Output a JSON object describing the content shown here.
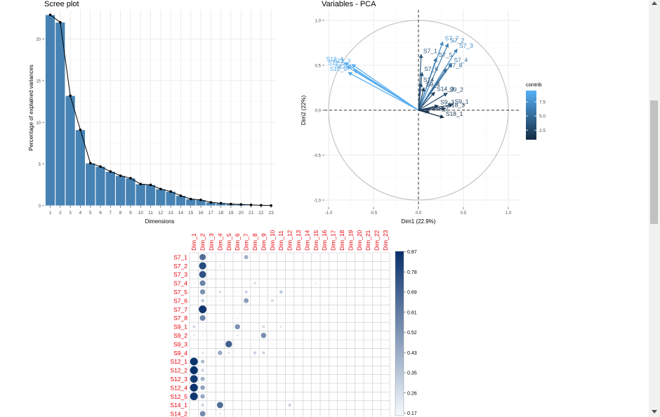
{
  "chart_data": [
    {
      "type": "bar",
      "title": "Scree plot",
      "xlabel": "Dimensions",
      "ylabel": "Percentage of explained variances",
      "categories": [
        "1",
        "2",
        "3",
        "4",
        "5",
        "6",
        "7",
        "8",
        "9",
        "10",
        "11",
        "12",
        "13",
        "14",
        "15",
        "16",
        "17",
        "18",
        "19",
        "20",
        "21",
        "22",
        "23"
      ],
      "values": [
        22.9,
        22.0,
        13.2,
        9.1,
        5.1,
        4.7,
        4.1,
        3.6,
        3.3,
        2.6,
        2.5,
        2.0,
        1.7,
        1.2,
        0.8,
        0.7,
        0.4,
        0.3,
        0.2,
        0.15,
        0.1,
        0.05,
        0.02
      ],
      "ylim": [
        0,
        23.5
      ],
      "yticks": [
        "0",
        "5",
        "10",
        "15",
        "20"
      ],
      "bar_color": "#4682b4",
      "line_color": "#000000"
    },
    {
      "type": "scatter",
      "title": "Variables - PCA",
      "xlabel": "Dim1 (22.9%)",
      "ylabel": "Dim2 (22%)",
      "xlim": [
        -1.0,
        1.0
      ],
      "ylim": [
        -1.0,
        1.0
      ],
      "xticks": [
        "-1.0",
        "-0.5",
        "0.0",
        "0.5",
        "1.0"
      ],
      "yticks": [
        "-1.0",
        "-0.5",
        "0.0",
        "0.5",
        "1.0"
      ],
      "legend_title": "contrib",
      "legend_ticks": [
        "7.5",
        "5.0",
        "2.5"
      ],
      "legend_colors": [
        "#56b1f7",
        "#132b43"
      ],
      "variables": [
        {
          "name": "S7_1",
          "x": 0.03,
          "y": 0.62,
          "contrib": 3.5
        },
        {
          "name": "S7_2",
          "x": 0.33,
          "y": 0.74,
          "contrib": 6.3
        },
        {
          "name": "S7_3",
          "x": 0.43,
          "y": 0.68,
          "contrib": 6.6
        },
        {
          "name": "S7_4",
          "x": 0.37,
          "y": 0.52,
          "contrib": 5.4
        },
        {
          "name": "S7_5",
          "x": 0.2,
          "y": 0.58,
          "contrib": 4.6
        },
        {
          "name": "S7_6",
          "x": 0.04,
          "y": 0.42,
          "contrib": 3.3
        },
        {
          "name": "S7_7",
          "x": 0.27,
          "y": 0.76,
          "contrib": 7.1
        },
        {
          "name": "S7_8",
          "x": 0.31,
          "y": 0.46,
          "contrib": 4.9
        },
        {
          "name": "S9_1",
          "x": 0.38,
          "y": 0.06,
          "contrib": 2.5
        },
        {
          "name": "S9_2",
          "x": 0.32,
          "y": 0.19,
          "contrib": 3.0
        },
        {
          "name": "S9_3",
          "x": 0.22,
          "y": 0.05,
          "contrib": 2.0
        },
        {
          "name": "S9_4",
          "x": 0.06,
          "y": 0.25,
          "contrib": 2.0
        },
        {
          "name": "S12_1",
          "x": -0.72,
          "y": 0.45,
          "contrib": 9.0
        },
        {
          "name": "S12_2",
          "x": -0.78,
          "y": 0.42,
          "contrib": 9.0
        },
        {
          "name": "S12_3",
          "x": -0.74,
          "y": 0.51,
          "contrib": 9.2
        },
        {
          "name": "S12_4",
          "x": -0.82,
          "y": 0.53,
          "contrib": 9.2
        },
        {
          "name": "S12_5",
          "x": -0.8,
          "y": 0.49,
          "contrib": 9.1
        },
        {
          "name": "S14",
          "x": 0.03,
          "y": 0.3,
          "contrib": 2.8
        },
        {
          "name": "S14_3",
          "x": 0.18,
          "y": 0.2,
          "contrib": 2.3
        },
        {
          "name": "S18_1",
          "x": 0.28,
          "y": -0.08,
          "contrib": 0.9
        },
        {
          "name": "S18_2",
          "x": 0.12,
          "y": -0.02,
          "contrib": 1.3
        },
        {
          "name": "S18_3",
          "x": 0.3,
          "y": 0.02,
          "contrib": 1.6
        }
      ]
    },
    {
      "type": "heatmap",
      "columns": [
        "Dim_1",
        "Dim_2",
        "Dim_3",
        "Dim_4",
        "Dim_5",
        "Dim_6",
        "Dim_7",
        "Dim_8",
        "Dim_9",
        "Dim_10",
        "Dim_11",
        "Dim_12",
        "Dim_13",
        "Dim_14",
        "Dim_15",
        "Dim_16",
        "Dim_17",
        "Dim_18",
        "Dim_19",
        "Dim_20",
        "Dim_21",
        "Dim_22",
        "Dim_23"
      ],
      "rows": [
        "S7_1",
        "S7_2",
        "S7_3",
        "S7_4",
        "S7_5",
        "S7_6",
        "S7_7",
        "S7_8",
        "S9_1",
        "S9_2",
        "S9_3",
        "S9_4",
        "S12_1",
        "S12_2",
        "S12_3",
        "S12_4",
        "S12_5",
        "S14_1",
        "S14_2"
      ],
      "label_color": "#e8000a",
      "colorbar_ticks": [
        "0.87",
        "0.78",
        "0.69",
        "0.61",
        "0.52",
        "0.43",
        "0.35",
        "0.26",
        "0.17"
      ],
      "colorbar_colors": [
        "#f7fbff",
        "#08306b"
      ],
      "values": [
        [
          0.02,
          0.55,
          0.03,
          0.02,
          0.02,
          0.01,
          0.25,
          0.02,
          0.01,
          0.01,
          0.01,
          0.01,
          0.02,
          0.03,
          0.01,
          0.02,
          0.01,
          0.01,
          0.01,
          0.01,
          0.01,
          0.01,
          0.01
        ],
        [
          0.03,
          0.73,
          0.02,
          0.05,
          0.01,
          0.01,
          0.02,
          0.01,
          0.01,
          0.01,
          0.01,
          0.01,
          0.01,
          0.01,
          0.01,
          0.01,
          0.01,
          0.01,
          0.01,
          0.01,
          0.01,
          0.01,
          0.01
        ],
        [
          0.02,
          0.69,
          0.02,
          0.02,
          0.01,
          0.01,
          0.01,
          0.01,
          0.01,
          0.01,
          0.01,
          0.01,
          0.01,
          0.01,
          0.01,
          0.01,
          0.01,
          0.01,
          0.01,
          0.01,
          0.01,
          0.01,
          0.01
        ],
        [
          0.03,
          0.45,
          0.02,
          0.02,
          0.01,
          0.01,
          0.01,
          0.08,
          0.01,
          0.01,
          0.01,
          0.01,
          0.02,
          0.02,
          0.04,
          0.01,
          0.01,
          0.01,
          0.01,
          0.01,
          0.01,
          0.01,
          0.01
        ],
        [
          0.02,
          0.38,
          0.02,
          0.08,
          0.01,
          0.02,
          0.12,
          0.01,
          0.01,
          0.01,
          0.15,
          0.02,
          0.01,
          0.01,
          0.01,
          0.01,
          0.01,
          0.01,
          0.01,
          0.01,
          0.01,
          0.01,
          0.01
        ],
        [
          0.03,
          0.15,
          0.03,
          0.03,
          0.02,
          0.01,
          0.33,
          0.01,
          0.01,
          0.1,
          0.01,
          0.01,
          0.01,
          0.01,
          0.01,
          0.01,
          0.01,
          0.01,
          0.01,
          0.01,
          0.01,
          0.01,
          0.01
        ],
        [
          0.02,
          0.84,
          0.02,
          0.02,
          0.01,
          0.01,
          0.02,
          0.01,
          0.01,
          0.01,
          0.01,
          0.01,
          0.01,
          0.01,
          0.01,
          0.01,
          0.03,
          0.01,
          0.01,
          0.01,
          0.01,
          0.01,
          0.01
        ],
        [
          0.02,
          0.45,
          0.02,
          0.02,
          0.01,
          0.04,
          0.01,
          0.01,
          0.01,
          0.01,
          0.03,
          0.01,
          0.01,
          0.01,
          0.01,
          0.01,
          0.01,
          0.01,
          0.01,
          0.01,
          0.01,
          0.01,
          0.01
        ],
        [
          0.1,
          0.02,
          0.02,
          0.02,
          0.02,
          0.38,
          0.01,
          0.01,
          0.1,
          0.01,
          0.06,
          0.01,
          0.01,
          0.01,
          0.01,
          0.01,
          0.01,
          0.01,
          0.01,
          0.01,
          0.01,
          0.01,
          0.01
        ],
        [
          0.05,
          0.04,
          0.02,
          0.02,
          0.02,
          0.05,
          0.01,
          0.01,
          0.4,
          0.01,
          0.01,
          0.01,
          0.01,
          0.01,
          0.01,
          0.01,
          0.01,
          0.01,
          0.01,
          0.01,
          0.01,
          0.01,
          0.01
        ],
        [
          0.03,
          0.02,
          0.02,
          0.02,
          0.62,
          0.02,
          0.01,
          0.01,
          0.01,
          0.04,
          0.01,
          0.01,
          0.01,
          0.01,
          0.01,
          0.01,
          0.01,
          0.01,
          0.01,
          0.01,
          0.01,
          0.01,
          0.01
        ],
        [
          0.02,
          0.06,
          0.02,
          0.28,
          0.06,
          0.02,
          0.02,
          0.12,
          0.12,
          0.02,
          0.01,
          0.03,
          0.02,
          0.01,
          0.01,
          0.01,
          0.01,
          0.01,
          0.01,
          0.01,
          0.01,
          0.01,
          0.01
        ],
        [
          0.85,
          0.2,
          0.02,
          0.01,
          0.01,
          0.01,
          0.01,
          0.01,
          0.01,
          0.01,
          0.01,
          0.01,
          0.01,
          0.01,
          0.01,
          0.01,
          0.01,
          0.01,
          0.01,
          0.01,
          0.01,
          0.01,
          0.01
        ],
        [
          0.87,
          0.12,
          0.02,
          0.01,
          0.01,
          0.01,
          0.01,
          0.01,
          0.01,
          0.01,
          0.01,
          0.01,
          0.01,
          0.01,
          0.01,
          0.01,
          0.01,
          0.01,
          0.01,
          0.01,
          0.01,
          0.01,
          0.01
        ],
        [
          0.82,
          0.25,
          0.01,
          0.01,
          0.01,
          0.01,
          0.01,
          0.01,
          0.01,
          0.01,
          0.01,
          0.01,
          0.01,
          0.01,
          0.01,
          0.01,
          0.01,
          0.01,
          0.01,
          0.01,
          0.01,
          0.01,
          0.01
        ],
        [
          0.86,
          0.3,
          0.01,
          0.01,
          0.01,
          0.01,
          0.01,
          0.01,
          0.01,
          0.01,
          0.01,
          0.01,
          0.01,
          0.01,
          0.01,
          0.01,
          0.01,
          0.01,
          0.01,
          0.01,
          0.01,
          0.01,
          0.01
        ],
        [
          0.84,
          0.28,
          0.01,
          0.01,
          0.01,
          0.01,
          0.01,
          0.01,
          0.01,
          0.01,
          0.01,
          0.01,
          0.01,
          0.01,
          0.01,
          0.01,
          0.01,
          0.01,
          0.01,
          0.01,
          0.01,
          0.01,
          0.01
        ],
        [
          0.02,
          0.12,
          0.02,
          0.55,
          0.02,
          0.01,
          0.02,
          0.02,
          0.02,
          0.02,
          0.02,
          0.12,
          0.01,
          0.01,
          0.01,
          0.01,
          0.01,
          0.01,
          0.01,
          0.01,
          0.01,
          0.01,
          0.01
        ],
        [
          0.02,
          0.42,
          0.02,
          0.05,
          0.01,
          0.04,
          0.01,
          0.01,
          0.01,
          0.01,
          0.01,
          0.01,
          0.01,
          0.01,
          0.01,
          0.01,
          0.01,
          0.01,
          0.01,
          0.01,
          0.01,
          0.01,
          0.01
        ]
      ]
    }
  ]
}
